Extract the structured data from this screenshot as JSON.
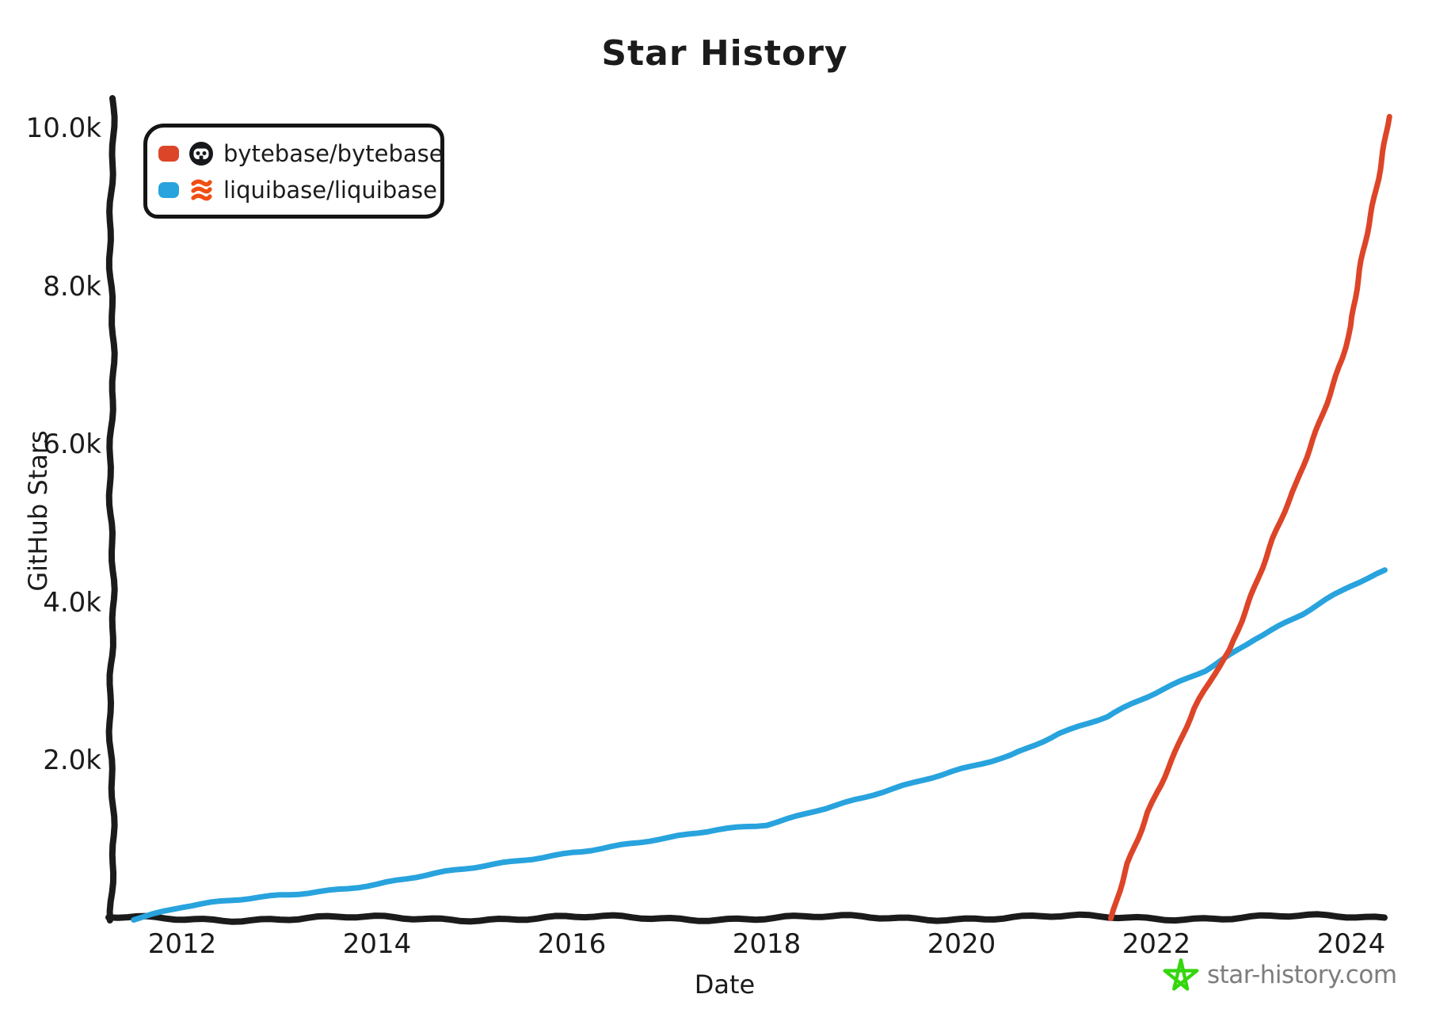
{
  "title": "Star History",
  "legend": {
    "items": [
      {
        "label": "bytebase/bytebase",
        "color": "#dd4528",
        "icon": "bytebase-avatar-icon"
      },
      {
        "label": "liquibase/liquibase",
        "color": "#28a3dd",
        "icon": "liquibase-avatar-icon"
      }
    ]
  },
  "watermark": {
    "text": "star-history.com",
    "star_color": "#35d60f",
    "text_color": "#7d7d7d"
  },
  "chart_data": {
    "type": "line",
    "title": "Star History",
    "xlabel": "Date",
    "ylabel": "GitHub Stars",
    "xlim": [
      2011.3,
      2024.5
    ],
    "ylim": [
      0,
      10000
    ],
    "grid": false,
    "legend_position": "top-left",
    "x_ticks": [
      {
        "value": 2012,
        "label": "2012"
      },
      {
        "value": 2014,
        "label": "2014"
      },
      {
        "value": 2016,
        "label": "2016"
      },
      {
        "value": 2018,
        "label": "2018"
      },
      {
        "value": 2020,
        "label": "2020"
      },
      {
        "value": 2022,
        "label": "2022"
      },
      {
        "value": 2024,
        "label": "2024"
      }
    ],
    "y_ticks": [
      {
        "value": 2000,
        "label": "2.0k"
      },
      {
        "value": 4000,
        "label": "4.0k"
      },
      {
        "value": 6000,
        "label": "6.0k"
      },
      {
        "value": 8000,
        "label": "8.0k"
      },
      {
        "value": 10000,
        "label": "10.0k"
      }
    ],
    "series": [
      {
        "name": "bytebase/bytebase",
        "color": "#dd4528",
        "x": [
          2021.55,
          2021.7,
          2021.9,
          2022.0,
          2022.2,
          2022.4,
          2022.6,
          2022.75,
          2022.9,
          2023.0,
          2023.2,
          2023.45,
          2023.7,
          2023.9,
          2024.0,
          2024.1,
          2024.2,
          2024.3,
          2024.38
        ],
        "y": [
          0,
          700,
          1350,
          1600,
          2100,
          2650,
          3100,
          3400,
          3900,
          4200,
          4800,
          5500,
          6400,
          7100,
          7500,
          8200,
          8900,
          9600,
          10150
        ]
      },
      {
        "name": "liquibase/liquibase",
        "color": "#28a3dd",
        "x": [
          2011.5,
          2012.0,
          2012.5,
          2013.0,
          2013.5,
          2014.0,
          2014.5,
          2015.0,
          2015.5,
          2016.0,
          2016.5,
          2017.0,
          2017.5,
          2018.0,
          2018.5,
          2019.0,
          2019.5,
          2020.0,
          2020.5,
          2021.0,
          2021.5,
          2022.0,
          2022.5,
          2023.0,
          2023.5,
          2024.0,
          2024.35
        ],
        "y": [
          0,
          140,
          220,
          300,
          370,
          440,
          540,
          640,
          750,
          850,
          930,
          1010,
          1120,
          1200,
          1380,
          1530,
          1700,
          1890,
          2080,
          2350,
          2550,
          2850,
          3150,
          3550,
          3850,
          4200,
          4400
        ]
      }
    ]
  }
}
